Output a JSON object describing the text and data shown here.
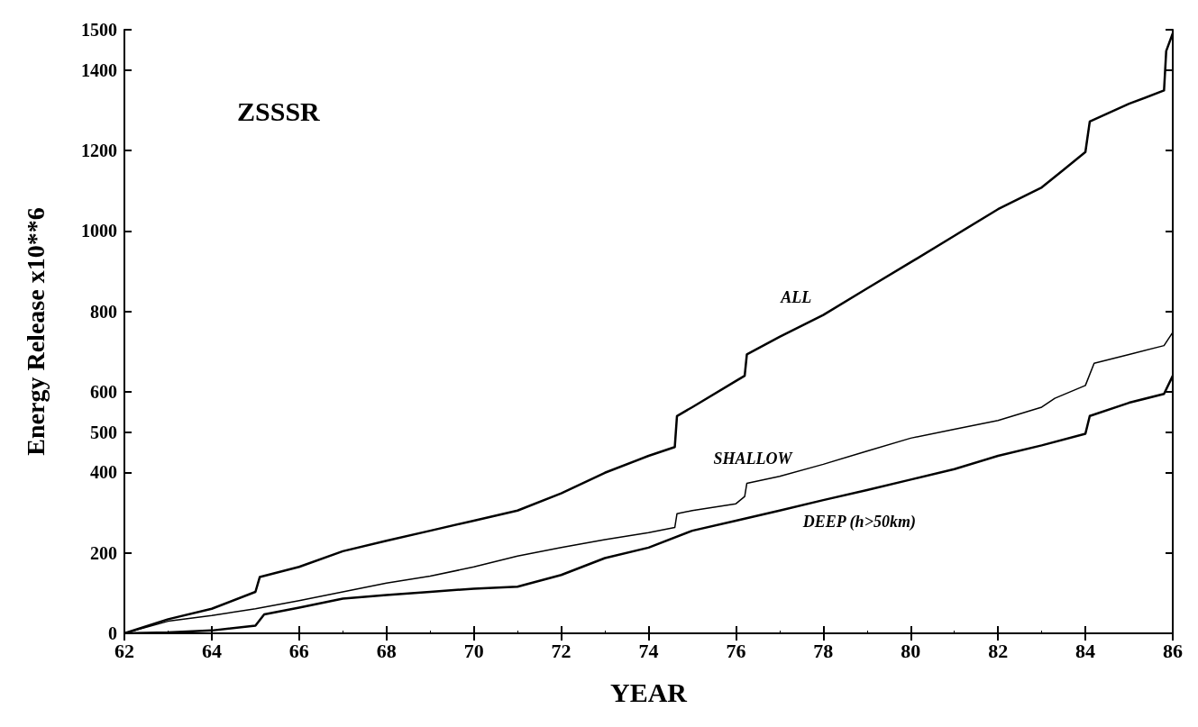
{
  "chart_data": {
    "type": "line",
    "xlabel": "YEAR",
    "ylabel": "Energy Release x10**6",
    "xlim": [
      62,
      86
    ],
    "xticks": [
      62,
      64,
      66,
      68,
      70,
      72,
      74,
      76,
      78,
      80,
      82,
      84,
      86
    ],
    "ylim": [
      0,
      1500
    ],
    "yticks": [
      0,
      200,
      400,
      500,
      600,
      800,
      1000,
      1200,
      1400,
      1500
    ],
    "grid": false,
    "marker": "none",
    "line_style": "solid",
    "annotations": [
      "ZSSSR"
    ],
    "series": [
      {
        "name": "ALL",
        "color": "#000000",
        "x": [
          62,
          63,
          64,
          65,
          65.1,
          66,
          67,
          68,
          69,
          70,
          71,
          72,
          73,
          74,
          74.6,
          74.65,
          75,
          76,
          76.2,
          76.25,
          77,
          78,
          79,
          80,
          81,
          82,
          83,
          83.5,
          84,
          84.1,
          85,
          85.8,
          85.85,
          86
        ],
        "values": [
          0,
          35,
          61,
          103,
          140,
          165,
          204,
          230,
          255,
          280,
          305,
          348,
          399,
          441,
          463,
          540,
          562,
          627,
          640,
          693,
          737,
          791,
          857,
          922,
          988,
          1054,
          1108,
          1152,
          1196,
          1272,
          1316,
          1349,
          1447,
          1491
        ]
      },
      {
        "name": "SHALLOW",
        "color": "#000000",
        "x": [
          62,
          63,
          64,
          65,
          66,
          67,
          68,
          69,
          70,
          71,
          72,
          73,
          74,
          74.6,
          74.65,
          75,
          76,
          76.2,
          76.25,
          77,
          78,
          79,
          80,
          81,
          82,
          83,
          83.3,
          84,
          84.2,
          85,
          85.8,
          86
        ],
        "values": [
          0,
          30,
          44,
          61,
          81,
          103,
          125,
          142,
          165,
          192,
          213,
          233,
          250,
          263,
          297,
          305,
          322,
          340,
          373,
          390,
          420,
          453,
          485,
          507,
          529,
          562,
          584,
          616,
          671,
          693,
          715,
          748
        ]
      },
      {
        "name": "DEEP (h>50km)",
        "color": "#000000",
        "x": [
          62,
          63,
          64,
          65,
          65.2,
          66,
          67,
          68,
          69,
          70,
          71,
          72,
          73,
          74,
          75,
          76,
          77,
          78,
          79,
          80,
          81,
          82,
          83,
          84,
          84.1,
          85,
          85.8,
          86
        ],
        "values": [
          0,
          2,
          7,
          19,
          47,
          64,
          86,
          95,
          103,
          111,
          116,
          145,
          187,
          213,
          255,
          280,
          305,
          331,
          356,
          382,
          408,
          441,
          467,
          496,
          540,
          573,
          595,
          640
        ]
      }
    ]
  }
}
